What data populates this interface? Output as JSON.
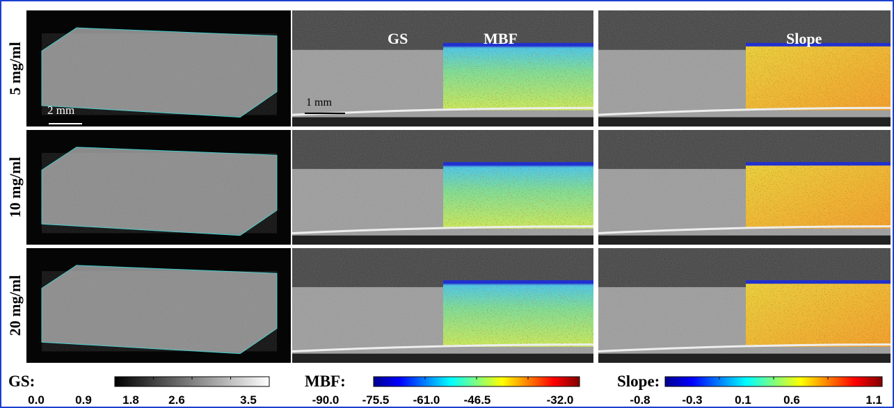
{
  "row_labels": [
    "5 mg/ml",
    "10 mg/ml",
    "20 mg/ml"
  ],
  "panel_labels": {
    "gs": "GS",
    "mbf": "MBF",
    "slope": "Slope"
  },
  "scale_bars": {
    "volume": "2 mm",
    "slice": "1 mm"
  },
  "colorbars": [
    {
      "label": "GS:",
      "ticks": [
        "0.0",
        "0.9",
        "1.8",
        "2.6",
        "3.5"
      ]
    },
    {
      "label": "MBF:",
      "ticks": [
        "-90.0",
        "-75.5",
        "-61.0",
        "-46.5",
        "-32.0"
      ]
    },
    {
      "label": "Slope:",
      "ticks": [
        "-0.8",
        "-0.3",
        "0.1",
        "0.6",
        "1.1"
      ]
    }
  ]
}
